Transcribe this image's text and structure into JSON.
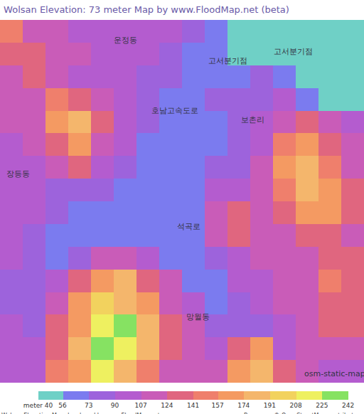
{
  "chart_data": {
    "type": "heatmap",
    "title": "Wolsan Elevation: 73 meter Map by www.FloodMap.net (beta)",
    "tick_labels": false,
    "cells": [
      [
        150,
        120,
        110,
        105,
        100,
        100,
        95,
        95,
        80,
        60,
        50,
        45,
        45,
        45,
        45,
        45
      ],
      [
        130,
        125,
        110,
        110,
        100,
        95,
        90,
        80,
        70,
        60,
        55,
        45,
        45,
        45,
        45,
        45
      ],
      [
        120,
        130,
        115,
        105,
        100,
        95,
        85,
        75,
        60,
        65,
        70,
        80,
        60,
        45,
        45,
        45
      ],
      [
        110,
        120,
        150,
        140,
        110,
        90,
        80,
        65,
        60,
        75,
        80,
        85,
        90,
        70,
        55,
        50
      ],
      [
        110,
        115,
        160,
        175,
        130,
        95,
        80,
        60,
        58,
        70,
        80,
        90,
        110,
        130,
        110,
        95
      ],
      [
        105,
        110,
        140,
        170,
        120,
        90,
        65,
        60,
        60,
        70,
        75,
        100,
        150,
        160,
        140,
        110
      ],
      [
        100,
        105,
        110,
        130,
        100,
        75,
        65,
        60,
        62,
        75,
        80,
        110,
        160,
        185,
        150,
        120
      ],
      [
        100,
        95,
        85,
        80,
        75,
        70,
        60,
        58,
        65,
        90,
        100,
        120,
        150,
        190,
        170,
        130
      ],
      [
        105,
        90,
        80,
        70,
        65,
        60,
        58,
        60,
        70,
        120,
        130,
        115,
        140,
        170,
        160,
        130
      ],
      [
        100,
        85,
        70,
        65,
        60,
        58,
        60,
        60,
        65,
        110,
        125,
        110,
        115,
        140,
        130,
        115
      ],
      [
        90,
        80,
        70,
        80,
        120,
        110,
        100,
        65,
        60,
        75,
        100,
        110,
        115,
        120,
        140,
        130
      ],
      [
        80,
        75,
        90,
        130,
        160,
        175,
        140,
        110,
        70,
        60,
        90,
        100,
        110,
        120,
        150,
        140
      ],
      [
        85,
        80,
        110,
        160,
        200,
        185,
        170,
        120,
        90,
        70,
        80,
        95,
        110,
        120,
        140,
        140
      ],
      [
        95,
        85,
        130,
        170,
        220,
        230,
        180,
        130,
        110,
        85,
        75,
        80,
        100,
        110,
        130,
        130
      ],
      [
        100,
        90,
        140,
        180,
        230,
        215,
        175,
        130,
        120,
        100,
        140,
        170,
        90,
        120,
        120,
        110
      ],
      [
        95,
        100,
        150,
        170,
        210,
        180,
        150,
        120,
        110,
        110,
        160,
        175,
        130,
        110,
        100,
        100
      ]
    ],
    "colorbar": {
      "range": [
        40,
        242
      ],
      "ticks": [
        {
          "value": 40,
          "label": "meter 40"
        },
        56,
        73,
        90,
        107,
        124,
        141,
        157,
        174,
        191,
        208,
        225,
        242
      ],
      "colors": [
        "#6fd0c6",
        "#7b7bef",
        "#9d63dc",
        "#b45ccf",
        "#c95cb8",
        "#e0667f",
        "#ef7f6c",
        "#f49a62",
        "#f4b66c",
        "#f2d25e",
        "#eef060",
        "#86e262"
      ]
    },
    "annotations": [
      {
        "text": "운정동",
        "x": 5.0,
        "y": 0.4
      },
      {
        "text": "고서분기점",
        "x": 9.5,
        "y": 1.3
      },
      {
        "text": "고서분기점",
        "x": 12.4,
        "y": 0.9
      },
      {
        "text": "보촌리",
        "x": 10.6,
        "y": 3.9
      },
      {
        "text": "장등동",
        "x": 0.3,
        "y": 6.3
      },
      {
        "text": "호남고속도로",
        "x": 7.2,
        "y": 3.5
      },
      {
        "text": "석곡로",
        "x": 7.8,
        "y": 8.6
      },
      {
        "text": "망월동",
        "x": 8.2,
        "y": 12.6
      },
      {
        "text": "osm-static-maps",
        "x": 14.3,
        "y": 15.1
      }
    ],
    "credits": [
      "Wolsan Elevation Map developed by www.FloodMap.net",
      "Base map © OpenStreetMap contributors"
    ]
  }
}
